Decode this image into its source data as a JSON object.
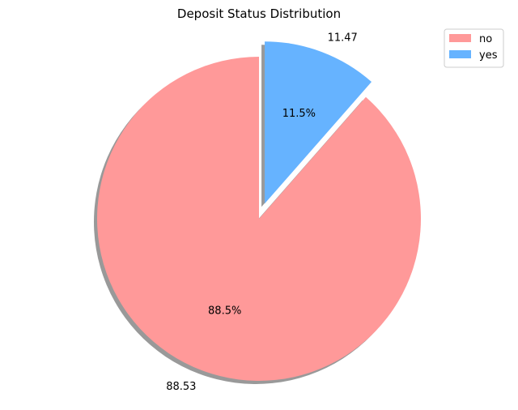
{
  "chart_data": {
    "type": "pie",
    "title": "Deposit Status Distribution",
    "slices": [
      {
        "name": "no",
        "value": 88.53,
        "value_label": "88.53",
        "pct_label": "88.5%",
        "color": "#ff9999",
        "explode": false
      },
      {
        "name": "yes",
        "value": 11.47,
        "value_label": "11.47",
        "pct_label": "11.5%",
        "color": "#66b3ff",
        "explode": true
      }
    ],
    "start_angle": 90,
    "direction": "counterclockwise",
    "shadow": true,
    "legend": {
      "placement": "top-right",
      "entries": [
        "no",
        "yes"
      ]
    }
  }
}
